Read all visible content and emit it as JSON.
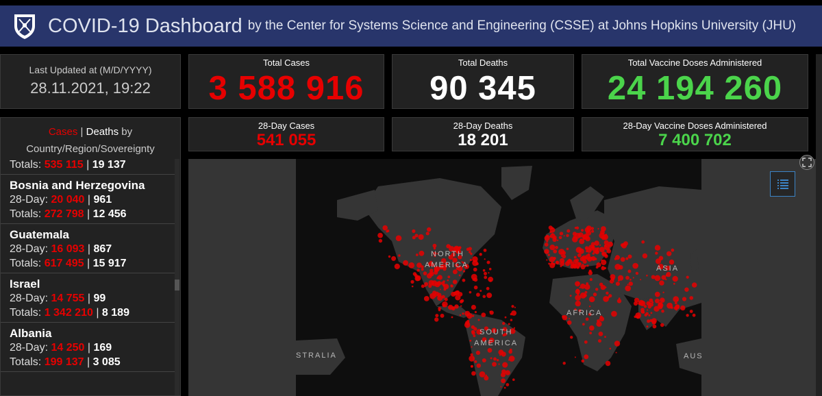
{
  "header": {
    "title": "COVID-19 Dashboard",
    "subtitle": "by the Center for Systems Science and Engineering (CSSE) at Johns Hopkins University (JHU)"
  },
  "updated": {
    "label": "Last Updated at (M/D/YYYY)",
    "value": "28.11.2021, 19:22"
  },
  "totals": {
    "cases": {
      "label": "Total Cases",
      "value": "3 588 916"
    },
    "deaths": {
      "label": "Total Deaths",
      "value": "90 345"
    },
    "vaccines": {
      "label": "Total Vaccine Doses Administered",
      "value": "24 194 260"
    }
  },
  "day28": {
    "cases": {
      "label": "28-Day Cases",
      "value": "541 055"
    },
    "deaths": {
      "label": "28-Day Deaths",
      "value": "18 201"
    },
    "vaccines": {
      "label": "28-Day Vaccine Doses Administered",
      "value": "7 400 702"
    }
  },
  "list": {
    "title_cases": "Cases",
    "title_sep": " | ",
    "title_deaths": "Deaths",
    "title_by": " by",
    "title_line2": "Country/Region/Sovereignty",
    "partial": {
      "totals_label": "Totals: ",
      "totals_cases": "535 115",
      "totals_deaths": "19 137"
    },
    "items": [
      {
        "name": "Bosnia and Herzegovina",
        "day_label": "28-Day: ",
        "day_cases": "20 040",
        "day_deaths": "961",
        "totals_label": "Totals: ",
        "totals_cases": "272 798",
        "totals_deaths": "12 456"
      },
      {
        "name": "Guatemala",
        "day_label": "28-Day: ",
        "day_cases": "16 093",
        "day_deaths": "867",
        "totals_label": "Totals: ",
        "totals_cases": "617 495",
        "totals_deaths": "15 917"
      },
      {
        "name": "Israel",
        "day_label": "28-Day: ",
        "day_cases": "14 755",
        "day_deaths": "99",
        "totals_label": "Totals: ",
        "totals_cases": "1 342 210",
        "totals_deaths": "8 189"
      },
      {
        "name": "Albania",
        "day_label": "28-Day: ",
        "day_cases": "14 250",
        "day_deaths": "169",
        "totals_label": "Totals: ",
        "totals_cases": "199 137",
        "totals_deaths": "3 085"
      }
    ],
    "separator": " | "
  },
  "map": {
    "labels": {
      "north_america_1": "NORTH",
      "north_america_2": "AMERICA",
      "south_america_1": "SOUTH",
      "south_america_2": "AMERICA",
      "africa": "AFRICA",
      "asia": "ASIA",
      "australia_left": "STRALIA",
      "australia_right": "AUS"
    },
    "land_color": "#353535",
    "ocean_color": "#0e0e0e",
    "dot_color": "#e60000"
  },
  "icons": {
    "logo": "jhu-shield-icon",
    "legend": "list-icon",
    "expand": "expand-icon"
  },
  "colors": {
    "header_bg": "#28356b",
    "cases": "#e60000",
    "deaths": "#ffffff",
    "vaccines": "#4bd44b"
  }
}
